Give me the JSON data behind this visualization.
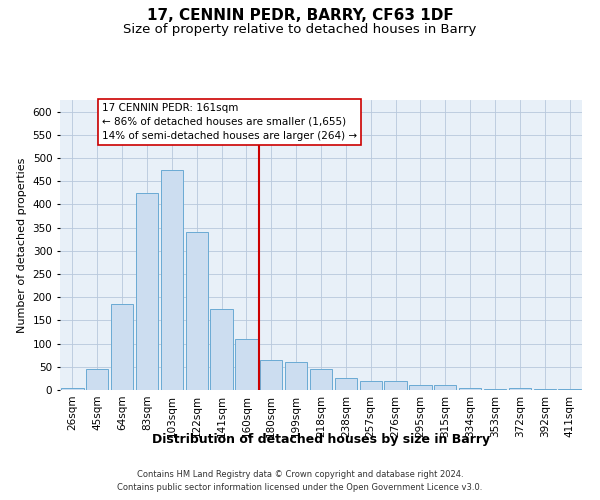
{
  "title": "17, CENNIN PEDR, BARRY, CF63 1DF",
  "subtitle": "Size of property relative to detached houses in Barry",
  "xlabel": "Distribution of detached houses by size in Barry",
  "ylabel": "Number of detached properties",
  "footer_line1": "Contains HM Land Registry data © Crown copyright and database right 2024.",
  "footer_line2": "Contains public sector information licensed under the Open Government Licence v3.0.",
  "categories": [
    "26sqm",
    "45sqm",
    "64sqm",
    "83sqm",
    "103sqm",
    "122sqm",
    "141sqm",
    "160sqm",
    "180sqm",
    "199sqm",
    "218sqm",
    "238sqm",
    "257sqm",
    "276sqm",
    "295sqm",
    "315sqm",
    "334sqm",
    "353sqm",
    "372sqm",
    "392sqm",
    "411sqm"
  ],
  "values": [
    5,
    45,
    185,
    425,
    475,
    340,
    175,
    110,
    65,
    60,
    45,
    25,
    20,
    20,
    10,
    10,
    5,
    2,
    4,
    2,
    2
  ],
  "bar_color": "#ccddf0",
  "bar_edge_color": "#6aaad4",
  "background_color": "#ffffff",
  "plot_bg_color": "#e8f0f8",
  "grid_color": "#b8c8dc",
  "vline_color": "#cc0000",
  "vline_x": 7.5,
  "annotation_line1": "17 CENNIN PEDR: 161sqm",
  "annotation_line2": "← 86% of detached houses are smaller (1,655)",
  "annotation_line3": "14% of semi-detached houses are larger (264) →",
  "annotation_box_color": "#ffffff",
  "annotation_box_edge": "#cc0000",
  "ylim": [
    0,
    625
  ],
  "yticks": [
    0,
    50,
    100,
    150,
    200,
    250,
    300,
    350,
    400,
    450,
    500,
    550,
    600
  ],
  "title_fontsize": 11,
  "subtitle_fontsize": 9.5,
  "xlabel_fontsize": 9,
  "ylabel_fontsize": 8,
  "tick_fontsize": 7.5,
  "annotation_fontsize": 7.5,
  "footer_fontsize": 6
}
